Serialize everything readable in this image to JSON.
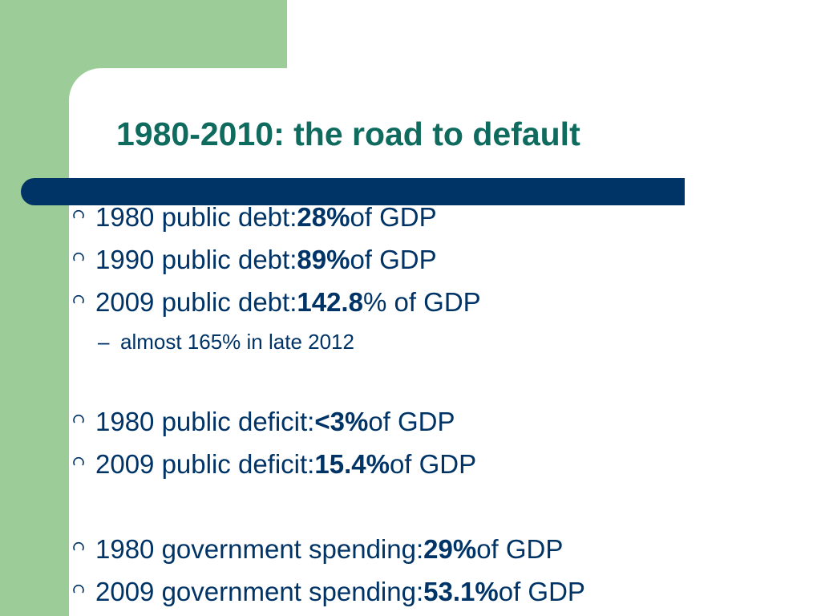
{
  "slide": {
    "title": "1980-2010: the road to default",
    "colors": {
      "title": "#0e6b5e",
      "text": "#003366",
      "accent_bar": "#003366",
      "side_panel": "#9ccc98"
    },
    "bullet_icon": "circle-bullet-icon",
    "bullets": [
      {
        "prefix": "1980 public debt: ",
        "value": "28%",
        "suffix": " of GDP"
      },
      {
        "prefix": "1990 public debt: ",
        "value": "89%",
        "suffix": " of GDP"
      },
      {
        "prefix": "2009 public debt: ",
        "value": "142.8",
        "suffix": "% of GDP"
      },
      {
        "prefix": "1980 public deficit: ",
        "value": "<3%",
        "suffix": " of GDP"
      },
      {
        "prefix": "2009 public deficit: ",
        "value": "15.4%",
        "suffix": " of GDP"
      },
      {
        "prefix": "1980 government spending: ",
        "value": "29%",
        "suffix": " of GDP"
      },
      {
        "prefix": "2009 government spending: ",
        "value": "53.1%",
        "suffix": " of GDP"
      }
    ],
    "sub_bullet": {
      "dash": "–",
      "text": "almost 165% in late 2012"
    }
  }
}
